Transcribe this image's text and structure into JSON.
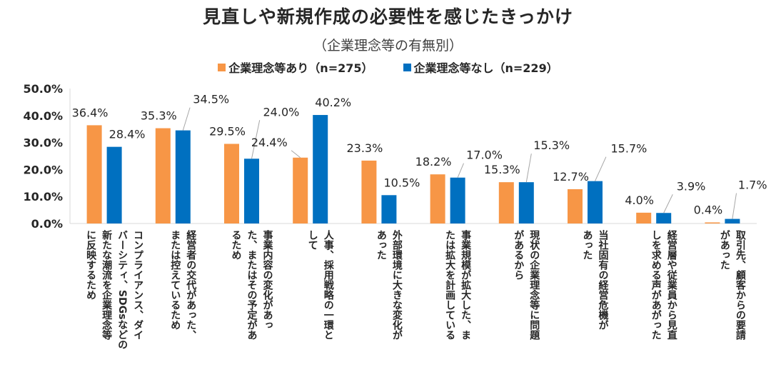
{
  "chart_data": {
    "type": "bar",
    "title": "見直しや新規作成の必要性を感じたきっかけ",
    "subtitle": "（企業理念等の有無別）",
    "xlabel": "",
    "ylabel": "",
    "ylim": [
      0,
      50
    ],
    "yticks": [
      "0.0%",
      "10.0%",
      "20.0%",
      "30.0%",
      "40.0%",
      "50.0%"
    ],
    "grid": false,
    "legend_position": "top-center",
    "categories": [
      "コンプライアンス、ダイバーシティ、SDGsなどの新たな潮流を企業理念等に反映するため",
      "経営者の交代があった、または控えているため",
      "事業内容の変化があった、またはその予定があるため",
      "人事、採用戦略の一環として",
      "外部環境に大きな変化があった",
      "事業規模が拡大した、または拡大を計画している",
      "現状の企業理念等に問題があるから",
      "当社固有の経営危機があった",
      "経営層や従業員から見直しを求める声があがった",
      "取引先、顧客からの要請があった"
    ],
    "category_lines": [
      [
        "コンプライアンス、ダイ",
        "バーシティ、SDGsなどの",
        "新たな潮流を企業理念等",
        "に反映するため"
      ],
      [
        "経営者の交代があった、",
        "または控えているため"
      ],
      [
        "事業内容の変化があっ",
        "た、またはその予定があ",
        "るため"
      ],
      [
        "人事、採用戦略の一環と",
        "して"
      ],
      [
        "外部環境に大きな変化が",
        "あった"
      ],
      [
        "事業規模が拡大した、ま",
        "たは拡大を計画している"
      ],
      [
        "現状の企業理念等に問題",
        "があるから"
      ],
      [
        "当社固有の経営危機が",
        "あった"
      ],
      [
        "経営層や従業員から見直",
        "しを求める声があがった"
      ],
      [
        "取引先、顧客からの要請",
        "があった"
      ]
    ],
    "series": [
      {
        "name": "企業理念等あり（n=275）",
        "color": "#F79646",
        "values": [
          36.4,
          35.3,
          29.5,
          24.4,
          23.3,
          18.2,
          15.3,
          12.7,
          4.0,
          0.4
        ],
        "labels": [
          "36.4%",
          "35.3%",
          "29.5%",
          "24.4%",
          "23.3%",
          "18.2%",
          "15.3%",
          "12.7%",
          "4.0%",
          "0.4%"
        ]
      },
      {
        "name": "企業理念等なし（n=229）",
        "color": "#0070C0",
        "values": [
          28.4,
          34.5,
          24.0,
          40.2,
          10.5,
          17.0,
          15.3,
          15.7,
          3.9,
          1.7
        ],
        "labels": [
          "28.4%",
          "34.5%",
          "24.0%",
          "40.2%",
          "10.5%",
          "17.0%",
          "15.3%",
          "15.7%",
          "3.9%",
          "1.7%"
        ]
      }
    ]
  }
}
